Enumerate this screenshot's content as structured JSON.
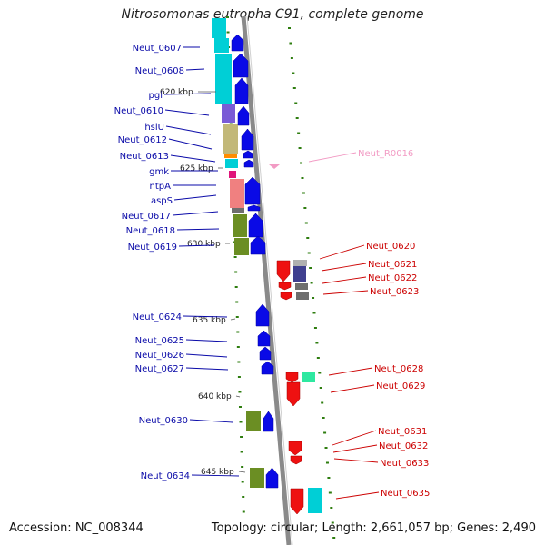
{
  "title": "Nitrosomonas eutropha C91, complete genome",
  "footer": {
    "accession": "Accession: NC_008344",
    "topology": "Topology: circular; Length: 2,661,057 bp; Genes: 2,490"
  },
  "colors": {
    "backbone": "#8a8a8a",
    "tick": "#2e7d0f",
    "left_label": "#0a0aa8",
    "right_label": "#cc0000",
    "rna_label": "#f29bc4",
    "forward_gene": "#0a0ae6",
    "reverse_gene": "#ee1111"
  },
  "kbp_marks": [
    "620 kbp",
    "625 kbp",
    "630 kbp",
    "635 kbp",
    "640 kbp",
    "645 kbp"
  ],
  "left_genes": [
    "Neut_0607",
    "Neut_0608",
    "pgi",
    "Neut_0610",
    "hslU",
    "Neut_0612",
    "Neut_0613",
    "gmk",
    "ntpA",
    "aspS",
    "Neut_0617",
    "Neut_0618",
    "Neut_0619",
    "Neut_0624",
    "Neut_0625",
    "Neut_0626",
    "Neut_0627",
    "Neut_0630",
    "Neut_0634"
  ],
  "right_genes": [
    "Neut_R0016",
    "Neut_0620",
    "Neut_0621",
    "Neut_0622",
    "Neut_0623",
    "Neut_0628",
    "Neut_0629",
    "Neut_0631",
    "Neut_0632",
    "Neut_0633",
    "Neut_0635"
  ],
  "category_colors": [
    "#00cfd6",
    "#7a5bd6",
    "#c2b878",
    "#ff8c00",
    "#e0157a",
    "#f08080",
    "#6b8e23",
    "#b0b0b0",
    "#3f3f8f",
    "#6e6e6e",
    "#2ee8a0"
  ]
}
